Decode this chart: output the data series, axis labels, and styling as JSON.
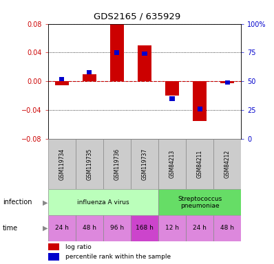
{
  "title": "GDS2165 / 635929",
  "samples": [
    "GSM119734",
    "GSM119735",
    "GSM119736",
    "GSM119737",
    "GSM84213",
    "GSM84211",
    "GSM84212"
  ],
  "log_ratio": [
    -0.005,
    0.01,
    0.08,
    0.05,
    -0.02,
    -0.055,
    -0.003
  ],
  "percentile_rank": [
    52,
    58,
    75,
    74,
    35,
    26,
    49
  ],
  "ylim_left": [
    -0.08,
    0.08
  ],
  "ylim_right": [
    0,
    100
  ],
  "yticks_left": [
    -0.08,
    -0.04,
    0,
    0.04,
    0.08
  ],
  "yticks_right": [
    0,
    25,
    50,
    75,
    100
  ],
  "infection_groups": [
    {
      "label": "influenza A virus",
      "span": [
        0,
        4
      ],
      "color": "#bbffbb"
    },
    {
      "label": "Streptococcus\npneumoniae",
      "span": [
        4,
        7
      ],
      "color": "#66dd66"
    }
  ],
  "time_labels": [
    "24 h",
    "48 h",
    "96 h",
    "168 h",
    "12 h",
    "24 h",
    "48 h"
  ],
  "time_colors": [
    "#dd88dd",
    "#dd88dd",
    "#dd88dd",
    "#cc44cc",
    "#dd88dd",
    "#dd88dd",
    "#dd88dd"
  ],
  "bar_color_red": "#cc0000",
  "bar_color_blue": "#0000cc",
  "hline_color": "#cc0000",
  "left_tick_color": "#cc0000",
  "right_tick_color": "#0000cc",
  "sample_box_color": "#cccccc",
  "bar_width": 0.5,
  "blue_bar_width": 0.18,
  "blue_bar_height": 0.006
}
